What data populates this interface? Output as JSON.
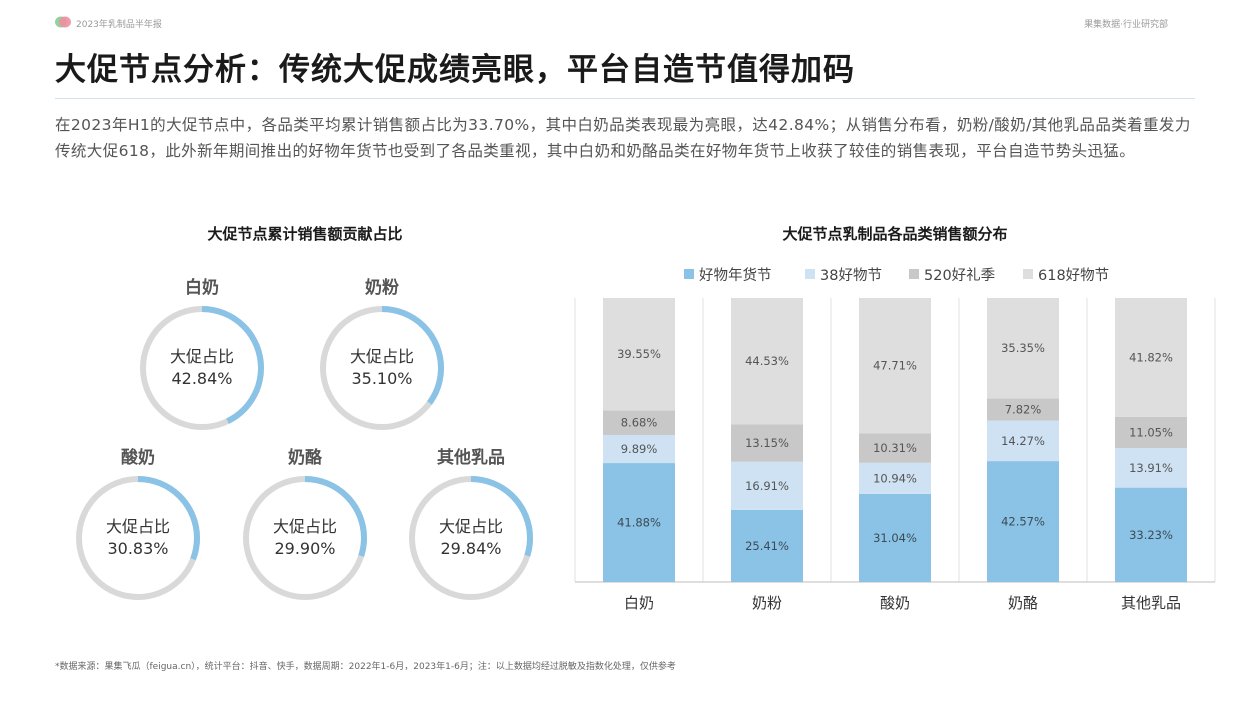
{
  "header": {
    "report_label": "2023年乳制品半年报",
    "brand_label": "果集数据·行业研究部"
  },
  "title": "大促节点分析：传统大促成绩亮眼，平台自造节值得加码",
  "summary": "在2023年H1的大促节点中，各品类平均累计销售额占比为33.70%，其中白奶品类表现最为亮眼，达42.84%；从销售分布看，奶粉/酸奶/其他乳品品类着重发力传统大促618，此外新年期间推出的好物年货节也受到了各品类重视，其中白奶和奶酪品类在好物年货节上收获了较佳的销售表现，平台自造节势头迅猛。",
  "donut_section": {
    "title": "大促节点累计销售额贡献占比",
    "center_label": "大促占比",
    "items": [
      {
        "name": "白奶",
        "value_text": "42.84%",
        "value": 42.84
      },
      {
        "name": "奶粉",
        "value_text": "35.10%",
        "value": 35.1
      },
      {
        "name": "酸奶",
        "value_text": "30.83%",
        "value": 30.83
      },
      {
        "name": "奶酪",
        "value_text": "29.90%",
        "value": 29.9
      },
      {
        "name": "其他乳品",
        "value_text": "29.84%",
        "value": 29.84
      }
    ],
    "colors": {
      "fill": "#8ac3e6",
      "track": "#d9d9d9"
    }
  },
  "chart_data": {
    "type": "bar",
    "stacked": true,
    "title": "大促节点乳制品各品类销售额分布",
    "categories": [
      "白奶",
      "奶粉",
      "酸奶",
      "奶酪",
      "其他乳品"
    ],
    "series": [
      {
        "name": "好物年货节",
        "color": "#8ac3e6",
        "values": [
          41.88,
          25.41,
          31.04,
          42.57,
          33.23
        ],
        "labels": [
          "41.88%",
          "25.41%",
          "31.04%",
          "42.57%",
          "33.23%"
        ]
      },
      {
        "name": "38好物节",
        "color": "#cfe2f3",
        "values": [
          9.89,
          16.91,
          10.94,
          14.27,
          13.91
        ],
        "labels": [
          "9.89%",
          "16.91%",
          "10.94%",
          "14.27%",
          "13.91%"
        ]
      },
      {
        "name": "520好礼季",
        "color": "#c8c8c8",
        "values": [
          8.68,
          13.15,
          10.31,
          7.82,
          11.05
        ],
        "labels": [
          "8.68%",
          "13.15%",
          "10.31%",
          "7.82%",
          "11.05%"
        ]
      },
      {
        "name": "618好物节",
        "color": "#dedede",
        "values": [
          39.55,
          44.53,
          47.71,
          35.35,
          41.82
        ],
        "labels": [
          "39.55%",
          "44.53%",
          "47.71%",
          "35.35%",
          "41.82%"
        ]
      }
    ],
    "ylim": [
      0,
      100
    ],
    "legend_position": "top",
    "grid": false
  },
  "footnote": "*数据来源：果集飞瓜（feigua.cn），统计平台：抖音、快手，数据周期：2022年1-6月，2023年1-6月；注：以上数据均经过脱敏及指数化处理，仅供参考"
}
